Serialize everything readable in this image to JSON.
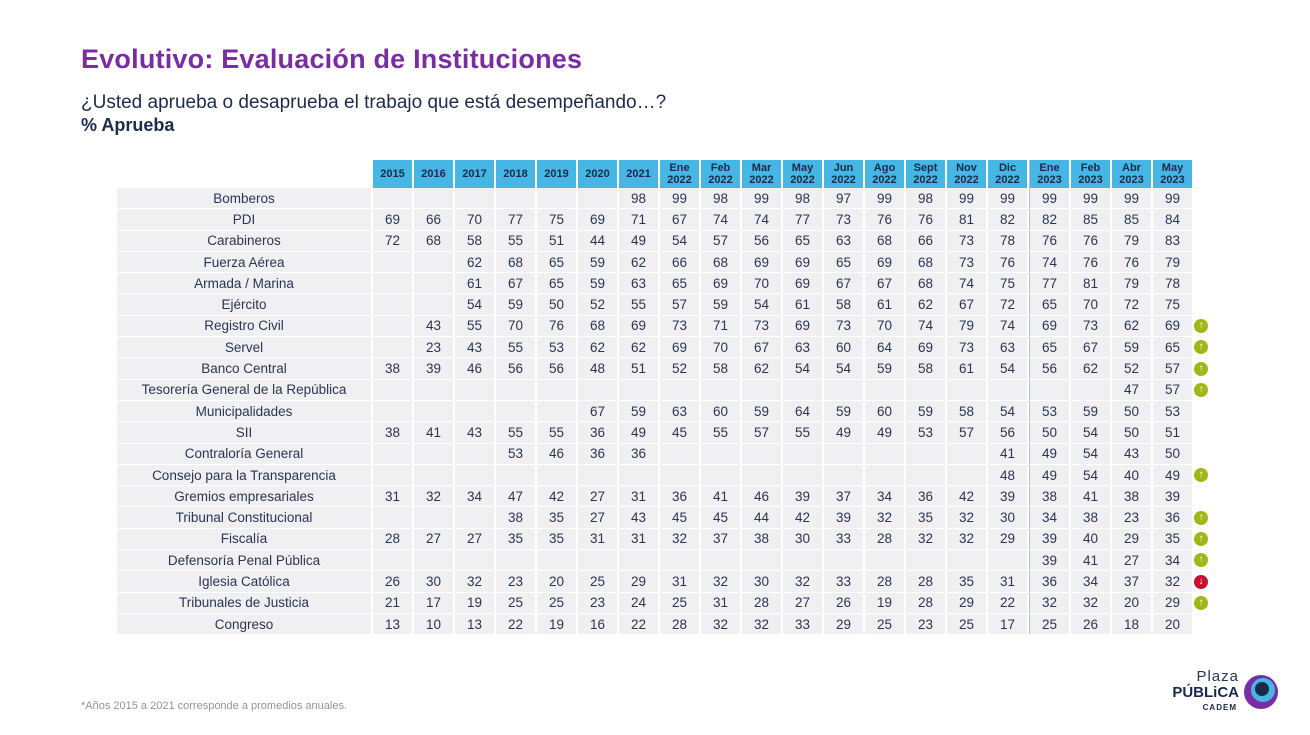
{
  "title": "Evolutivo: Evaluación de Instituciones",
  "subtitle": "¿Usted aprueba o desaprueba el trabajo que está desempeñando…?",
  "measure": "% Aprueba",
  "footnote": "*Años 2015 a 2021 corresponde a promedios anuales.",
  "logo": {
    "line1": "Plaza",
    "line2": "PÚBLiCA",
    "line3": "CADEM"
  },
  "colors": {
    "title": "#7a2ca3",
    "header": "#46b6e5",
    "row": "#f0f0f3",
    "arrow_up": "#a2b617",
    "arrow_down": "#c8102e"
  },
  "columns": [
    {
      "l1": "2015",
      "l2": ""
    },
    {
      "l1": "2016",
      "l2": ""
    },
    {
      "l1": "2017",
      "l2": ""
    },
    {
      "l1": "2018",
      "l2": ""
    },
    {
      "l1": "2019",
      "l2": ""
    },
    {
      "l1": "2020",
      "l2": ""
    },
    {
      "l1": "2021",
      "l2": ""
    },
    {
      "l1": "Ene",
      "l2": "2022"
    },
    {
      "l1": "Feb",
      "l2": "2022"
    },
    {
      "l1": "Mar",
      "l2": "2022"
    },
    {
      "l1": "May",
      "l2": "2022"
    },
    {
      "l1": "Jun",
      "l2": "2022"
    },
    {
      "l1": "Ago",
      "l2": "2022"
    },
    {
      "l1": "Sept",
      "l2": "2022"
    },
    {
      "l1": "Nov",
      "l2": "2022"
    },
    {
      "l1": "Dic",
      "l2": "2022"
    },
    {
      "l1": "Ene",
      "l2": "2023"
    },
    {
      "l1": "Feb",
      "l2": "2023"
    },
    {
      "l1": "Abr",
      "l2": "2023"
    },
    {
      "l1": "May",
      "l2": "2023"
    }
  ],
  "rows": [
    {
      "name": "Bomberos",
      "values": [
        "",
        "",
        "",
        "",
        "",
        "",
        "98",
        "99",
        "98",
        "99",
        "98",
        "97",
        "99",
        "98",
        "99",
        "99",
        "99",
        "99",
        "99",
        "99"
      ],
      "trend": ""
    },
    {
      "name": "PDI",
      "values": [
        "69",
        "66",
        "70",
        "77",
        "75",
        "69",
        "71",
        "67",
        "74",
        "74",
        "77",
        "73",
        "76",
        "76",
        "81",
        "82",
        "82",
        "85",
        "85",
        "84"
      ],
      "trend": ""
    },
    {
      "name": "Carabineros",
      "values": [
        "72",
        "68",
        "58",
        "55",
        "51",
        "44",
        "49",
        "54",
        "57",
        "56",
        "65",
        "63",
        "68",
        "66",
        "73",
        "78",
        "76",
        "76",
        "79",
        "83"
      ],
      "trend": ""
    },
    {
      "name": "Fuerza Aérea",
      "values": [
        "",
        "",
        "62",
        "68",
        "65",
        "59",
        "62",
        "66",
        "68",
        "69",
        "69",
        "65",
        "69",
        "68",
        "73",
        "76",
        "74",
        "76",
        "76",
        "79"
      ],
      "trend": ""
    },
    {
      "name": "Armada / Marina",
      "values": [
        "",
        "",
        "61",
        "67",
        "65",
        "59",
        "63",
        "65",
        "69",
        "70",
        "69",
        "67",
        "67",
        "68",
        "74",
        "75",
        "77",
        "81",
        "79",
        "78"
      ],
      "trend": ""
    },
    {
      "name": "Ejército",
      "values": [
        "",
        "",
        "54",
        "59",
        "50",
        "52",
        "55",
        "57",
        "59",
        "54",
        "61",
        "58",
        "61",
        "62",
        "67",
        "72",
        "65",
        "70",
        "72",
        "75"
      ],
      "trend": ""
    },
    {
      "name": "Registro Civil",
      "values": [
        "",
        "43",
        "55",
        "70",
        "76",
        "68",
        "69",
        "73",
        "71",
        "73",
        "69",
        "73",
        "70",
        "74",
        "79",
        "74",
        "69",
        "73",
        "62",
        "69"
      ],
      "trend": "up"
    },
    {
      "name": "Servel",
      "values": [
        "",
        "23",
        "43",
        "55",
        "53",
        "62",
        "62",
        "69",
        "70",
        "67",
        "63",
        "60",
        "64",
        "69",
        "73",
        "63",
        "65",
        "67",
        "59",
        "65"
      ],
      "trend": "up"
    },
    {
      "name": "Banco Central",
      "values": [
        "38",
        "39",
        "46",
        "56",
        "56",
        "48",
        "51",
        "52",
        "58",
        "62",
        "54",
        "54",
        "59",
        "58",
        "61",
        "54",
        "56",
        "62",
        "52",
        "57"
      ],
      "trend": "up"
    },
    {
      "name": "Tesorería General de la República",
      "values": [
        "",
        "",
        "",
        "",
        "",
        "",
        "",
        "",
        "",
        "",
        "",
        "",
        "",
        "",
        "",
        "",
        "",
        "",
        "47",
        "57"
      ],
      "trend": "up"
    },
    {
      "name": "Municipalidades",
      "values": [
        "",
        "",
        "",
        "",
        "",
        "67",
        "59",
        "63",
        "60",
        "59",
        "64",
        "59",
        "60",
        "59",
        "58",
        "54",
        "53",
        "59",
        "50",
        "53"
      ],
      "trend": ""
    },
    {
      "name": "SII",
      "values": [
        "38",
        "41",
        "43",
        "55",
        "55",
        "36",
        "49",
        "45",
        "55",
        "57",
        "55",
        "49",
        "49",
        "53",
        "57",
        "56",
        "50",
        "54",
        "50",
        "51"
      ],
      "trend": ""
    },
    {
      "name": "Contraloría General",
      "values": [
        "",
        "",
        "",
        "53",
        "46",
        "36",
        "36",
        "",
        "",
        "",
        "",
        "",
        "",
        "",
        "",
        "41",
        "49",
        "54",
        "43",
        "50"
      ],
      "trend": ""
    },
    {
      "name": "Consejo para la Transparencia",
      "values": [
        "",
        "",
        "",
        "",
        "",
        "",
        "",
        "",
        "",
        "",
        "",
        "",
        "",
        "",
        "",
        "48",
        "49",
        "54",
        "40",
        "49"
      ],
      "trend": "up"
    },
    {
      "name": "Gremios empresariales",
      "values": [
        "31",
        "32",
        "34",
        "47",
        "42",
        "27",
        "31",
        "36",
        "41",
        "46",
        "39",
        "37",
        "34",
        "36",
        "42",
        "39",
        "38",
        "41",
        "38",
        "39"
      ],
      "trend": ""
    },
    {
      "name": "Tribunal Constitucional",
      "values": [
        "",
        "",
        "",
        "38",
        "35",
        "27",
        "43",
        "45",
        "45",
        "44",
        "42",
        "39",
        "32",
        "35",
        "32",
        "30",
        "34",
        "38",
        "23",
        "36"
      ],
      "trend": "up"
    },
    {
      "name": "Fiscalía",
      "values": [
        "28",
        "27",
        "27",
        "35",
        "35",
        "31",
        "31",
        "32",
        "37",
        "38",
        "30",
        "33",
        "28",
        "32",
        "32",
        "29",
        "39",
        "40",
        "29",
        "35"
      ],
      "trend": "up"
    },
    {
      "name": "Defensoría Penal Pública",
      "values": [
        "",
        "",
        "",
        "",
        "",
        "",
        "",
        "",
        "",
        "",
        "",
        "",
        "",
        "",
        "",
        "",
        "39",
        "41",
        "27",
        "34"
      ],
      "trend": "up"
    },
    {
      "name": "Iglesia Católica",
      "values": [
        "26",
        "30",
        "32",
        "23",
        "20",
        "25",
        "29",
        "31",
        "32",
        "30",
        "32",
        "33",
        "28",
        "28",
        "35",
        "31",
        "36",
        "34",
        "37",
        "32"
      ],
      "trend": "down"
    },
    {
      "name": "Tribunales de Justicia",
      "values": [
        "21",
        "17",
        "19",
        "25",
        "25",
        "23",
        "24",
        "25",
        "31",
        "28",
        "27",
        "26",
        "19",
        "28",
        "29",
        "22",
        "32",
        "32",
        "20",
        "29"
      ],
      "trend": "up"
    },
    {
      "name": "Congreso",
      "values": [
        "13",
        "10",
        "13",
        "22",
        "19",
        "16",
        "22",
        "28",
        "32",
        "32",
        "33",
        "29",
        "25",
        "23",
        "25",
        "17",
        "25",
        "26",
        "18",
        "20"
      ],
      "trend": ""
    }
  ]
}
